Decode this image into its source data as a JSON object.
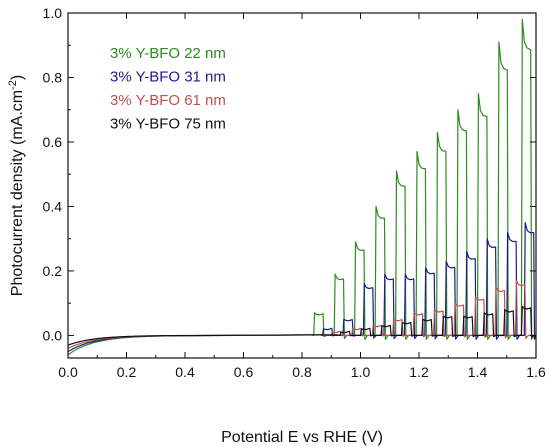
{
  "chart_data": {
    "type": "line",
    "title": "",
    "xlabel": "Potential E vs RHE (V)",
    "ylabel": "Photocurrent density (mA.cm",
    "ylabel_superscript": "-2",
    "ylabel_suffix": ")",
    "xlim": [
      0.0,
      1.6
    ],
    "ylim": [
      -0.07,
      1.0
    ],
    "xticks": [
      "0.0",
      "0.2",
      "0.4",
      "0.6",
      "0.8",
      "1.0",
      "1.2",
      "1.4",
      "1.6"
    ],
    "yticks": [
      "0.0",
      "0.2",
      "0.4",
      "0.6",
      "0.8",
      "1.0"
    ],
    "grid": false,
    "legend_position": "top-left",
    "chopped_illumination": true,
    "series": [
      {
        "name": "3% Y-BFO 22 nm",
        "color": "#2e8a1f",
        "dark_start": -0.06,
        "dark_flat": 0.0,
        "pulses": [
          {
            "x": 0.84,
            "peak": 0.07
          },
          {
            "x": 0.91,
            "peak": 0.19
          },
          {
            "x": 0.98,
            "peak": 0.29
          },
          {
            "x": 1.05,
            "peak": 0.4
          },
          {
            "x": 1.12,
            "peak": 0.51
          },
          {
            "x": 1.19,
            "peak": 0.57
          },
          {
            "x": 1.26,
            "peak": 0.63
          },
          {
            "x": 1.33,
            "peak": 0.7
          },
          {
            "x": 1.4,
            "peak": 0.75
          },
          {
            "x": 1.47,
            "peak": 0.91
          },
          {
            "x": 1.55,
            "peak": 0.98
          }
        ]
      },
      {
        "name": "3% Y-BFO 31 nm",
        "color": "#1c1c8c",
        "dark_start": -0.05,
        "dark_flat": 0.0,
        "pulses": [
          {
            "x": 0.87,
            "peak": 0.02
          },
          {
            "x": 0.94,
            "peak": 0.05
          },
          {
            "x": 1.01,
            "peak": 0.16
          },
          {
            "x": 1.08,
            "peak": 0.19
          },
          {
            "x": 1.15,
            "peak": 0.19
          },
          {
            "x": 1.22,
            "peak": 0.21
          },
          {
            "x": 1.29,
            "peak": 0.23
          },
          {
            "x": 1.36,
            "peak": 0.26
          },
          {
            "x": 1.43,
            "peak": 0.3
          },
          {
            "x": 1.5,
            "peak": 0.32
          },
          {
            "x": 1.56,
            "peak": 0.35
          }
        ]
      },
      {
        "name": "3% Y-BFO 61 nm",
        "color": "#c05050",
        "dark_start": -0.04,
        "dark_flat": 0.0,
        "pulses": [
          {
            "x": 0.9,
            "peak": 0.01
          },
          {
            "x": 0.97,
            "peak": 0.02
          },
          {
            "x": 1.04,
            "peak": 0.03
          },
          {
            "x": 1.11,
            "peak": 0.05
          },
          {
            "x": 1.18,
            "peak": 0.07
          },
          {
            "x": 1.25,
            "peak": 0.08
          },
          {
            "x": 1.32,
            "peak": 0.1
          },
          {
            "x": 1.39,
            "peak": 0.12
          },
          {
            "x": 1.46,
            "peak": 0.15
          },
          {
            "x": 1.53,
            "peak": 0.17
          }
        ]
      },
      {
        "name": "3% Y-BFO 75 nm",
        "color": "#111111",
        "dark_start": -0.03,
        "dark_flat": 0.0,
        "pulses": [
          {
            "x": 0.93,
            "peak": 0.01
          },
          {
            "x": 1.0,
            "peak": 0.02
          },
          {
            "x": 1.07,
            "peak": 0.03
          },
          {
            "x": 1.14,
            "peak": 0.04
          },
          {
            "x": 1.21,
            "peak": 0.05
          },
          {
            "x": 1.28,
            "peak": 0.06
          },
          {
            "x": 1.35,
            "peak": 0.06
          },
          {
            "x": 1.42,
            "peak": 0.07
          },
          {
            "x": 1.49,
            "peak": 0.08
          },
          {
            "x": 1.55,
            "peak": 0.09
          }
        ]
      }
    ]
  }
}
